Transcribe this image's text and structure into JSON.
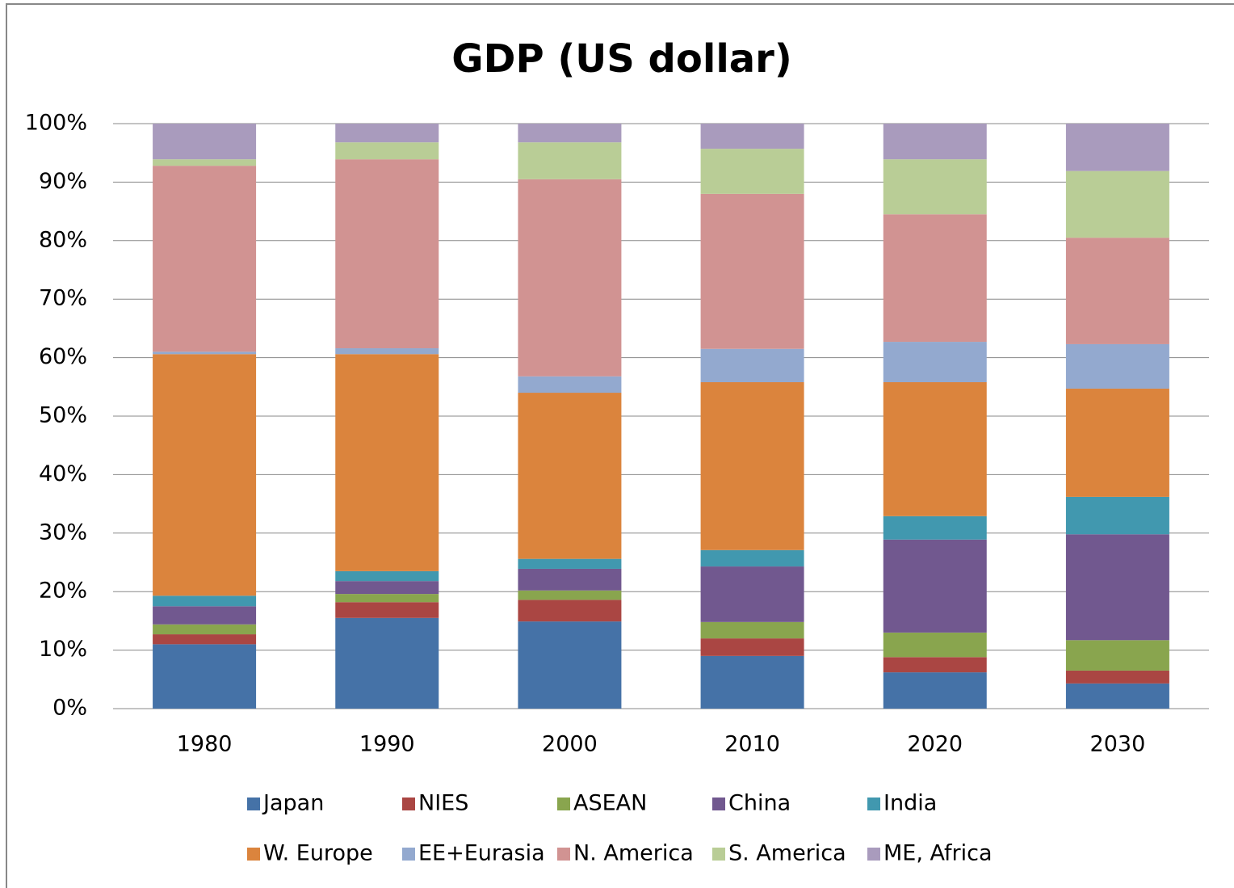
{
  "chart_data": {
    "type": "stacked_bar",
    "title": "GDP (US dollar)",
    "categories": [
      "1980",
      "1990",
      "2000",
      "2010",
      "2020",
      "2030"
    ],
    "series": [
      {
        "name": "Japan",
        "color": "#4572a7",
        "values": [
          11.0,
          15.5,
          14.9,
          9.0,
          6.2,
          4.3
        ]
      },
      {
        "name": "NIES",
        "color": "#aa4643",
        "values": [
          1.7,
          2.7,
          3.7,
          3.0,
          2.6,
          2.2
        ]
      },
      {
        "name": "ASEAN",
        "color": "#89a54e",
        "values": [
          1.7,
          1.4,
          1.6,
          2.8,
          4.2,
          5.2
        ]
      },
      {
        "name": "China",
        "color": "#71588f",
        "values": [
          3.1,
          2.2,
          3.7,
          9.5,
          15.9,
          18.1
        ]
      },
      {
        "name": "India",
        "color": "#4198af",
        "values": [
          1.8,
          1.7,
          1.7,
          2.8,
          4.0,
          6.4
        ]
      },
      {
        "name": "W. Europe",
        "color": "#db843d",
        "values": [
          41.3,
          37.1,
          28.4,
          28.7,
          22.9,
          18.5
        ]
      },
      {
        "name": "EE+Eurasia",
        "color": "#93a9cf",
        "values": [
          0.4,
          1.0,
          2.8,
          5.7,
          6.9,
          7.6
        ]
      },
      {
        "name": "N. America",
        "color": "#d19392",
        "values": [
          31.8,
          32.3,
          33.7,
          26.5,
          21.8,
          18.2
        ]
      },
      {
        "name": "S. America",
        "color": "#b9cd96",
        "values": [
          1.1,
          2.9,
          6.3,
          7.7,
          9.4,
          11.4
        ]
      },
      {
        "name": "ME, Africa",
        "color": "#a99bbd",
        "values": [
          6.1,
          3.2,
          3.2,
          4.3,
          6.1,
          8.1
        ]
      }
    ],
    "ylim": [
      0,
      100
    ],
    "yticks": [
      {
        "value": 0,
        "label": "0%"
      },
      {
        "value": 10,
        "label": "10%"
      },
      {
        "value": 20,
        "label": "20%"
      },
      {
        "value": 30,
        "label": "30%"
      },
      {
        "value": 40,
        "label": "40%"
      },
      {
        "value": 50,
        "label": "50%"
      },
      {
        "value": 60,
        "label": "60%"
      },
      {
        "value": 70,
        "label": "70%"
      },
      {
        "value": 80,
        "label": "80%"
      },
      {
        "value": 90,
        "label": "90%"
      },
      {
        "value": 100,
        "label": "100%"
      }
    ],
    "grid": true,
    "legend": "bottom"
  }
}
